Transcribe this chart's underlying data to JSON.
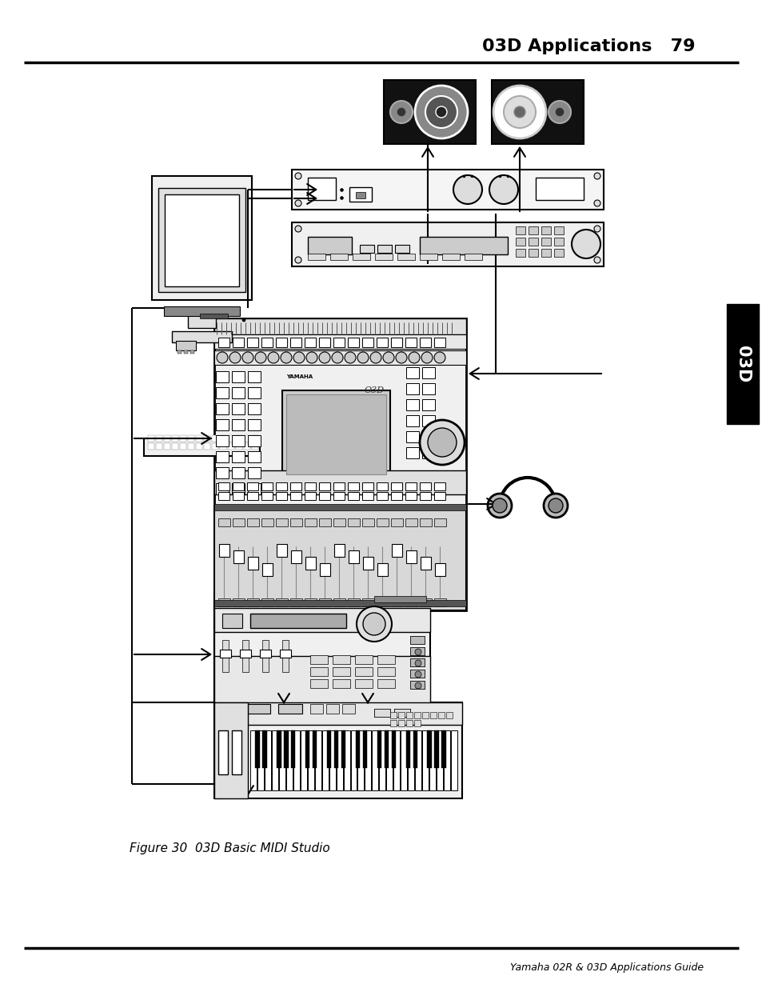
{
  "title": "03D Applications   79",
  "footer": "Yamaha 02R & 03D Applications Guide",
  "figure_caption": "Figure 30  03D Basic MIDI Studio",
  "bg_color": "#ffffff",
  "text_color": "#000000",
  "page_width": 9.54,
  "page_height": 12.35
}
